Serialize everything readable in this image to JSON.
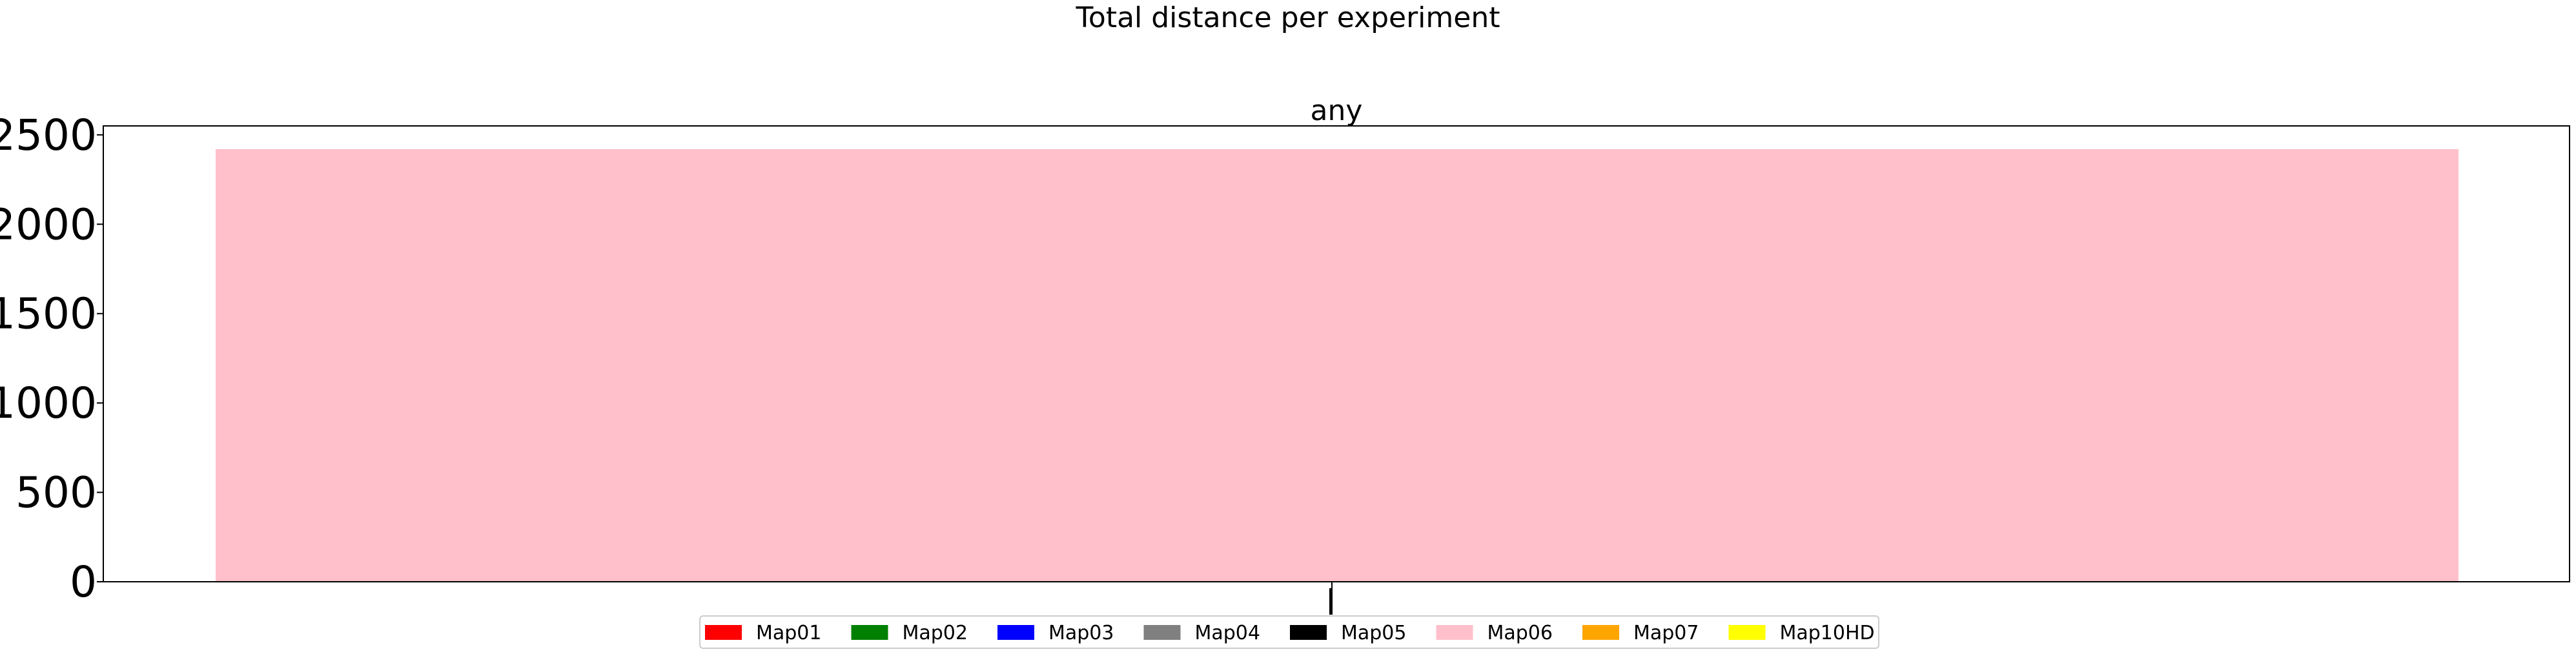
{
  "chart_data": {
    "type": "bar",
    "title": "Total distance per experiment",
    "subplot_title": "any",
    "xlabel": "",
    "ylabel": "",
    "ylim": [
      0,
      2550
    ],
    "yticks": [
      0,
      500,
      1000,
      1500,
      2000,
      2500
    ],
    "xticks": [
      ""
    ],
    "grid": false,
    "legend_placement": "bottom-center",
    "series": [
      {
        "name": "Map01",
        "color": "#ff0000",
        "values": [
          0
        ]
      },
      {
        "name": "Map02",
        "color": "#008000",
        "values": [
          0
        ]
      },
      {
        "name": "Map03",
        "color": "#0000ff",
        "values": [
          0
        ]
      },
      {
        "name": "Map04",
        "color": "#808080",
        "values": [
          0
        ]
      },
      {
        "name": "Map05",
        "color": "#000000",
        "values": [
          0
        ]
      },
      {
        "name": "Map06",
        "color": "#ffc0cb",
        "values": [
          2420
        ]
      },
      {
        "name": "Map07",
        "color": "#ffa500",
        "values": [
          0
        ]
      },
      {
        "name": "Map10HD",
        "color": "#ffff00",
        "values": [
          0
        ]
      }
    ]
  }
}
